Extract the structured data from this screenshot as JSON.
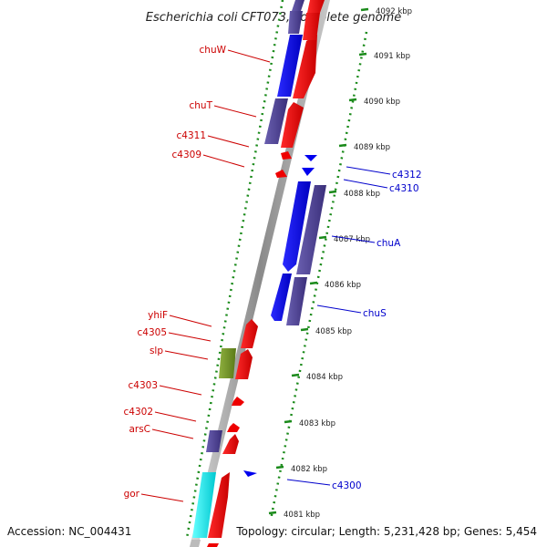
{
  "title": "Escherichia coli CFT073, complete genome",
  "footer": {
    "accession": "Accession: NC_004431",
    "topology": "Topology: circular; Length: 5,231,428 bp; Genes: 5,454"
  },
  "ruler": {
    "ticks": [
      "4092 kbp",
      "4091 kbp",
      "4090 kbp",
      "4089 kbp",
      "4088 kbp",
      "4087 kbp",
      "4086 kbp",
      "4085 kbp",
      "4084 kbp",
      "4083 kbp",
      "4082 kbp",
      "4081 kbp"
    ]
  },
  "genes_forward": [
    {
      "label": "chuW",
      "color": "#cc0000"
    },
    {
      "label": "chuT",
      "color": "#cc0000"
    },
    {
      "label": "c4311",
      "color": "#cc0000"
    },
    {
      "label": "c4309",
      "color": "#cc0000"
    },
    {
      "label": "yhiF",
      "color": "#cc0000"
    },
    {
      "label": "c4305",
      "color": "#cc0000"
    },
    {
      "label": "slp",
      "color": "#cc0000"
    },
    {
      "label": "c4303",
      "color": "#cc0000"
    },
    {
      "label": "c4302",
      "color": "#cc0000"
    },
    {
      "label": "arsC",
      "color": "#cc0000"
    },
    {
      "label": "gor",
      "color": "#cc0000"
    }
  ],
  "genes_reverse": [
    {
      "label": "c4312",
      "color": "#0000cc"
    },
    {
      "label": "c4310",
      "color": "#0000cc"
    },
    {
      "label": "chuA",
      "color": "#0000cc"
    },
    {
      "label": "chuS",
      "color": "#0000cc"
    },
    {
      "label": "c4300",
      "color": "#0000cc"
    }
  ],
  "colors": {
    "forward_gene": "#ff0000",
    "reverse_gene": "#0000ff",
    "cog_purple": "#4b3f8f",
    "cog_green": "#6b8e23",
    "cog_cyan": "#00e5e5",
    "ruler_tick": "#1a8a1a",
    "backbone": "#9a9a9a"
  }
}
